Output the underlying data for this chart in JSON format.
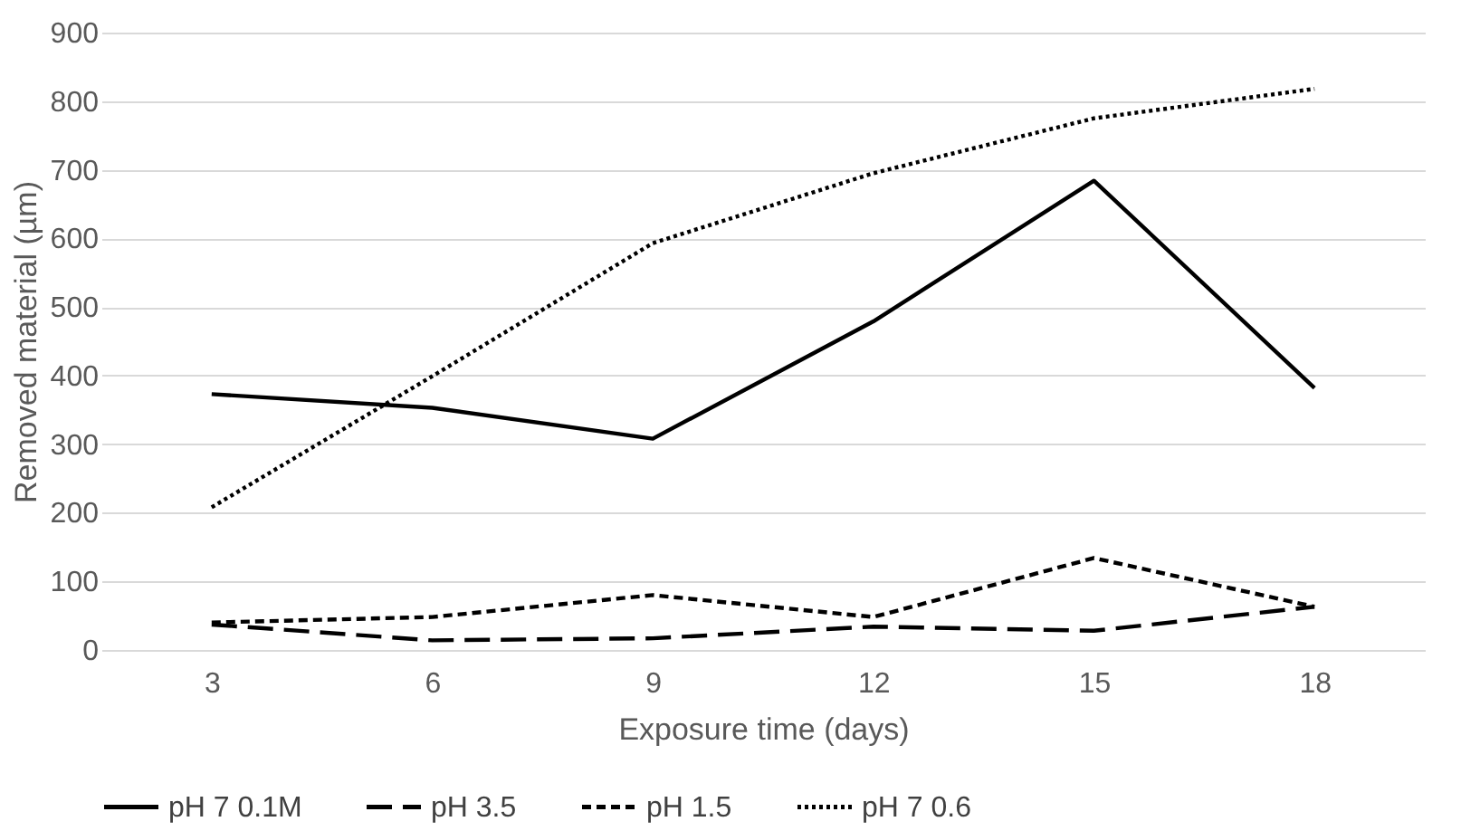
{
  "chart_data": {
    "type": "line",
    "xlabel": "Exposure time (days)",
    "ylabel": "Removed material (µm)",
    "categories": [
      "3",
      "6",
      "9",
      "12",
      "15",
      "18"
    ],
    "series": [
      {
        "name": "pH 7 0.1M",
        "color": "#000000",
        "line_style": "solid",
        "values": [
          373,
          353,
          308,
          479,
          684,
          382
        ]
      },
      {
        "name": "pH 3.5",
        "color": "#000000",
        "line_style": "longdash",
        "values": [
          37,
          14,
          17,
          34,
          28,
          63
        ]
      },
      {
        "name": "pH 1.5",
        "color": "#000000",
        "line_style": "dashed",
        "values": [
          40,
          48,
          80,
          48,
          134,
          63
        ]
      },
      {
        "name": "pH 7 0.6",
        "color": "#000000",
        "line_style": "dotted",
        "values": [
          208,
          399,
          593,
          695,
          775,
          818
        ]
      }
    ],
    "ylim": [
      0,
      900
    ],
    "yticks": [
      0,
      100,
      200,
      300,
      400,
      500,
      600,
      700,
      800,
      900
    ],
    "grid": "y",
    "legend": "bottom",
    "marker": "none"
  }
}
